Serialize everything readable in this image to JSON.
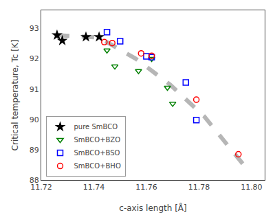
{
  "chart_data": {
    "type": "scatter",
    "xlabel": "c-axis length [Å]",
    "ylabel": "Critical temperature, Tc [K]",
    "xlim": [
      11.72,
      11.805
    ],
    "ylim": [
      88.0,
      93.6
    ],
    "xticks": [
      11.72,
      11.74,
      11.76,
      11.78,
      {
        "value": 11.8,
        "label": "11.80"
      }
    ],
    "yticks": [
      88,
      89,
      90,
      91,
      92,
      93
    ],
    "grid": false,
    "legend": "lower left",
    "series": [
      {
        "type": "line",
        "line_style": "dashed",
        "color": "#aaaaaa",
        "x": [
          11.726,
          11.742,
          11.756,
          11.769,
          11.782,
          11.797
        ],
        "values": [
          92.78,
          92.7,
          92.0,
          91.15,
          90.1,
          88.5
        ]
      },
      {
        "name": "pure SmBCO",
        "type": "scatter",
        "marker": "star",
        "color": "black",
        "x": [
          11.726,
          11.728,
          11.737,
          11.742
        ],
        "values": [
          92.78,
          92.6,
          92.72,
          92.72
        ]
      },
      {
        "name": "SmBCO+BZO",
        "type": "scatter",
        "marker": "triangle-down-open",
        "color": "#008000",
        "x": [
          11.745,
          11.748,
          11.757,
          11.762,
          11.768,
          11.77
        ],
        "values": [
          92.28,
          91.75,
          91.6,
          92.0,
          91.05,
          90.52
        ]
      },
      {
        "name": "SmBCO+BSO",
        "type": "scatter",
        "marker": "square-open",
        "color": "blue",
        "x": [
          11.745,
          11.75,
          11.76,
          11.762,
          11.775,
          11.779
        ],
        "values": [
          92.88,
          92.58,
          92.08,
          92.05,
          91.22,
          89.98
        ]
      },
      {
        "name": "SmBCO+BHO",
        "type": "scatter",
        "marker": "circle-open",
        "color": "red",
        "x": [
          11.744,
          11.747,
          11.758,
          11.762,
          11.779,
          11.795
        ],
        "values": [
          92.55,
          92.52,
          92.18,
          92.1,
          90.65,
          88.85
        ]
      }
    ]
  }
}
